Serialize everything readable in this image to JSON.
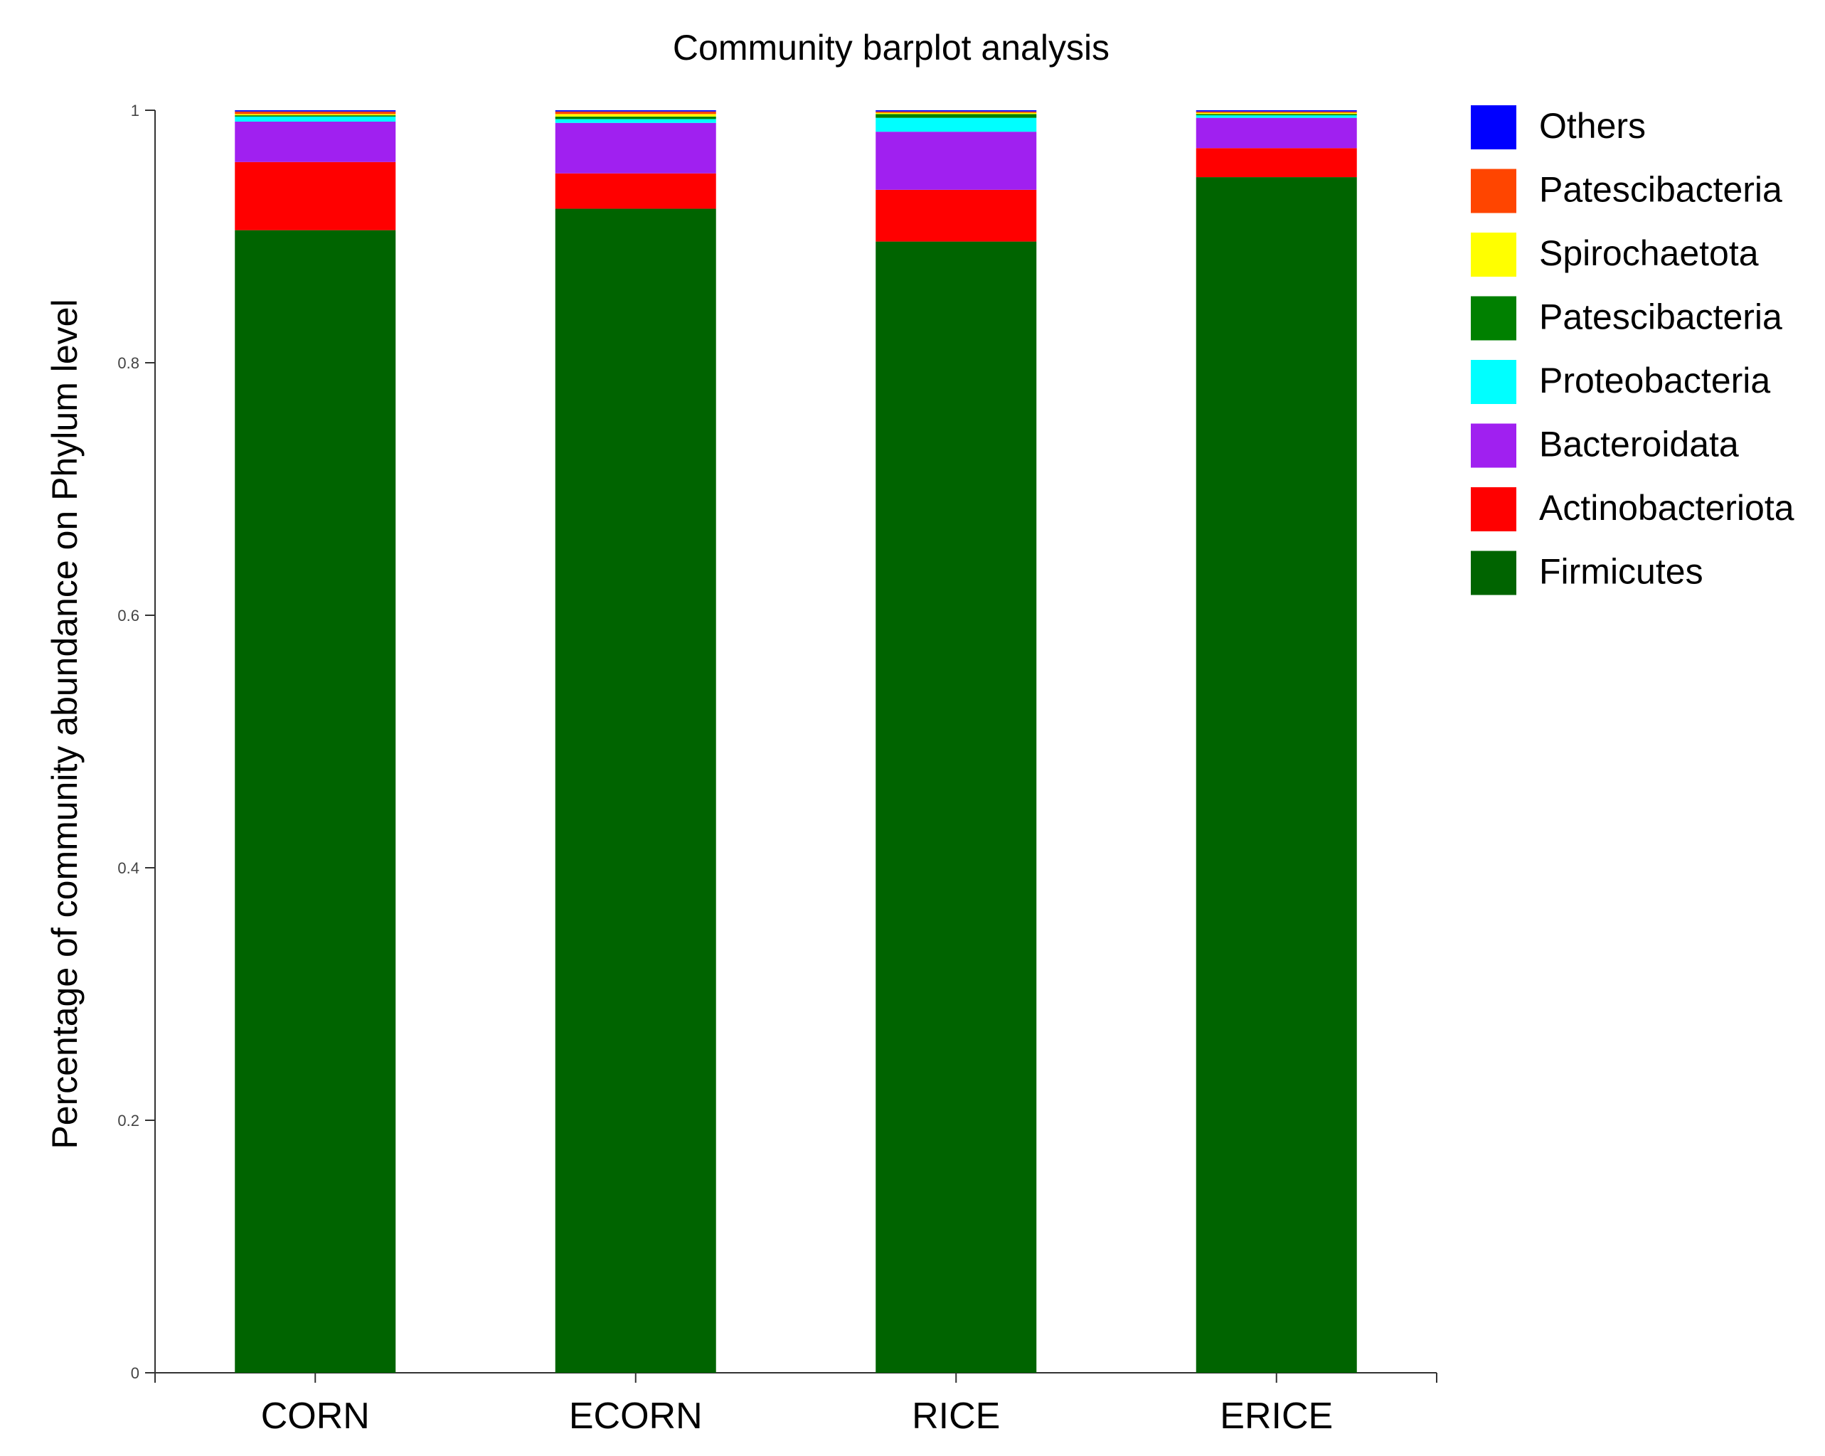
{
  "chart_data": {
    "type": "bar",
    "stacked": true,
    "title": "Community barplot analysis",
    "xlabel": "",
    "ylabel": "Percentage of community abundance on Phylum level",
    "ylim": [
      0,
      1
    ],
    "yticks": [
      0,
      0.2,
      0.4,
      0.6,
      0.8,
      1
    ],
    "ytick_labels": [
      "0",
      "0.2",
      "0.4",
      "0.6",
      "0.8",
      "1"
    ],
    "categories": [
      "CORN",
      "ECORN",
      "RICE",
      "ERICE"
    ],
    "series": [
      {
        "name": "Firmicutes",
        "color": "#006400",
        "values": [
          0.905,
          0.922,
          0.896,
          0.947
        ]
      },
      {
        "name": "Actinobacteriota",
        "color": "#ff0000",
        "values": [
          0.054,
          0.028,
          0.041,
          0.023
        ]
      },
      {
        "name": "Bacteroidata",
        "color": "#a020f0",
        "values": [
          0.032,
          0.04,
          0.046,
          0.024
        ]
      },
      {
        "name": "Proteobacteria",
        "color": "#00ffff",
        "values": [
          0.004,
          0.003,
          0.011,
          0.002
        ]
      },
      {
        "name": "Patescibacteria",
        "color": "#008000",
        "values": [
          0.001,
          0.002,
          0.003,
          0.001
        ]
      },
      {
        "name": "Spirochaetota",
        "color": "#ffff00",
        "values": [
          0.001,
          0.002,
          0.001,
          0.001
        ]
      },
      {
        "name": "Patescibacteria",
        "color": "#ff4500",
        "values": [
          0.002,
          0.002,
          0.001,
          0.001
        ]
      },
      {
        "name": "Others",
        "color": "#0000ff",
        "values": [
          0.001,
          0.001,
          0.001,
          0.001
        ]
      }
    ],
    "legend": {
      "position": "right",
      "order": [
        "Others",
        "Patescibacteria",
        "Spirochaetota",
        "Patescibacteria",
        "Proteobacteria",
        "Bacteroidata",
        "Actinobacteriota",
        "Firmicutes"
      ]
    }
  }
}
